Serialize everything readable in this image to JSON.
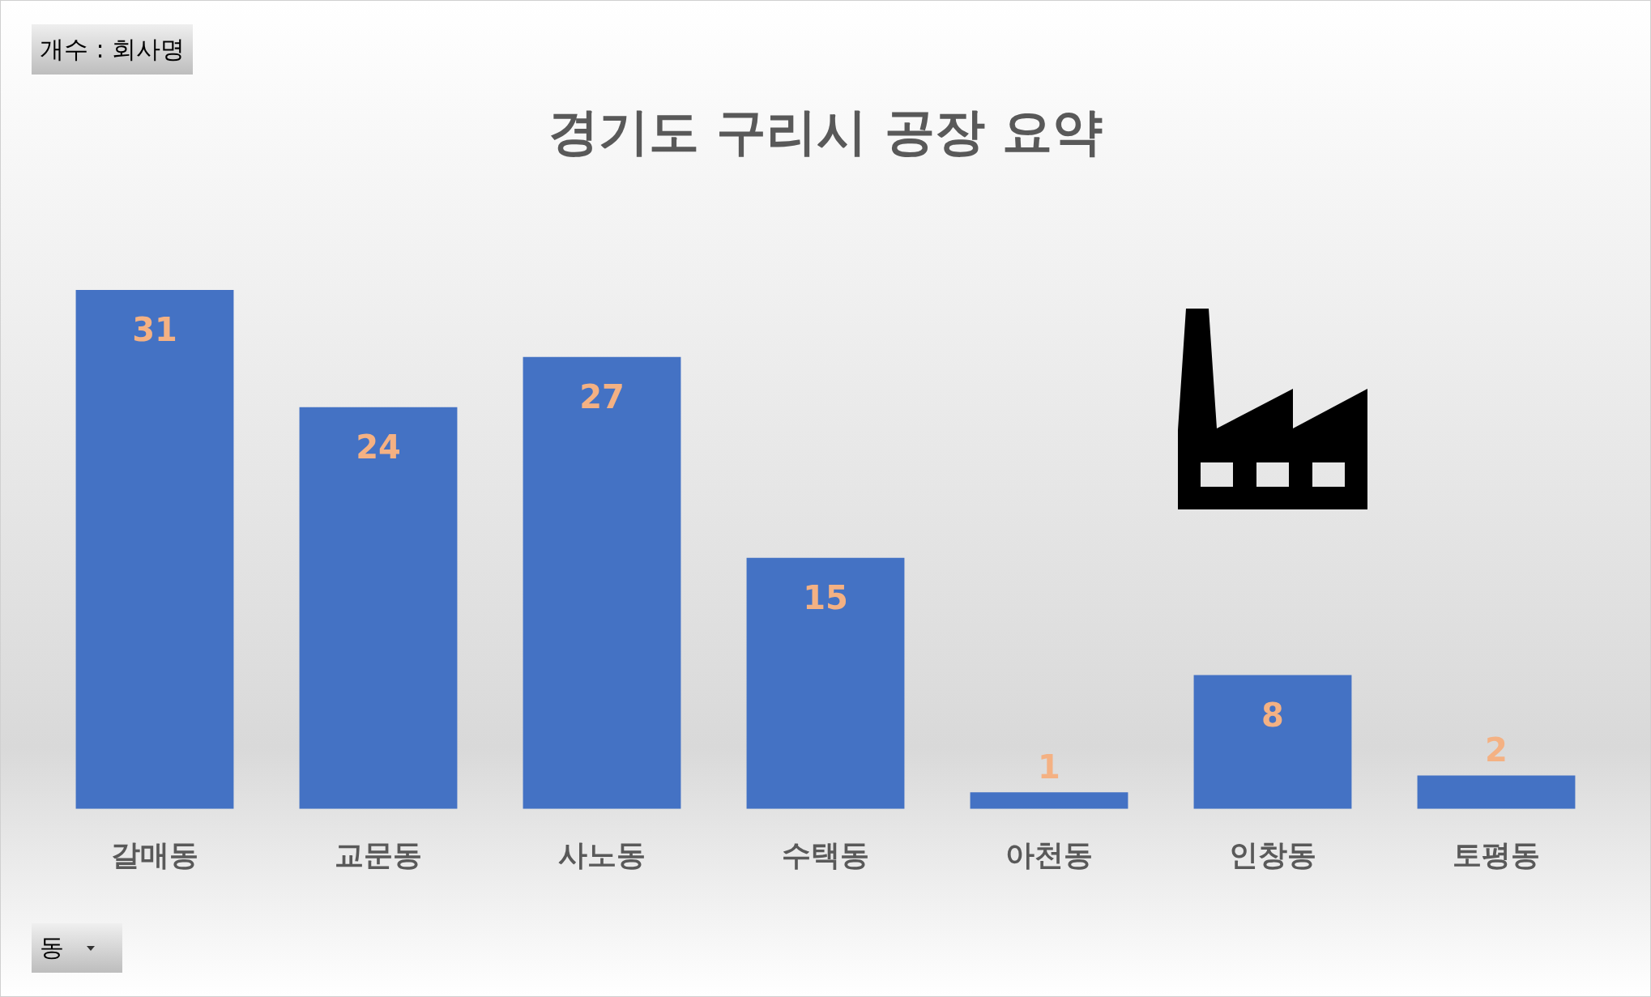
{
  "chart_data": {
    "type": "bar",
    "title": "경기도 구리시 공장 요약",
    "categories": [
      "갈매동",
      "교문동",
      "사노동",
      "수택동",
      "아천동",
      "인창동",
      "토평동"
    ],
    "values": [
      31,
      24,
      27,
      15,
      1,
      8,
      2
    ],
    "color": "#4472c4",
    "data_labels": true,
    "tick_labels": "x",
    "annotations": [
      "개수 : 회사명",
      "동"
    ]
  }
}
